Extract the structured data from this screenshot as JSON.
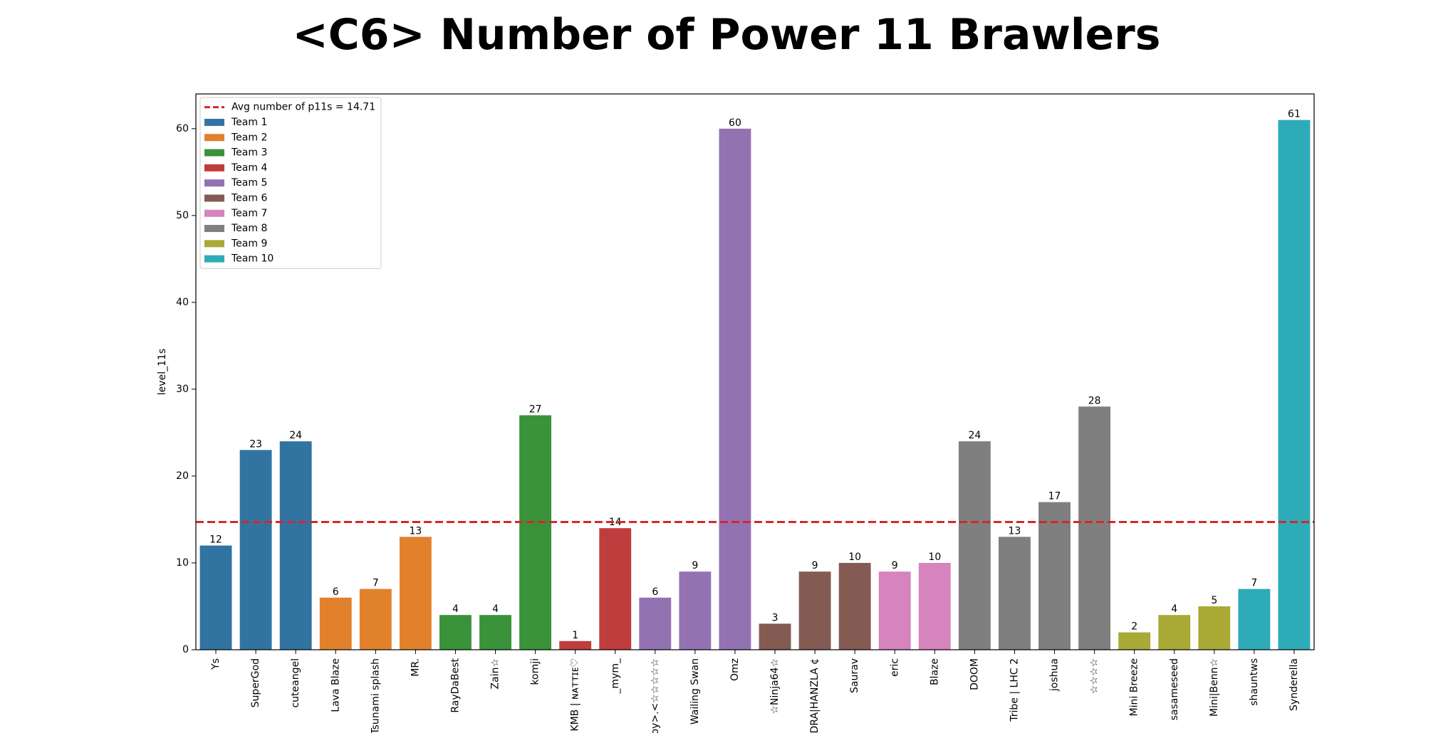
{
  "chart_data": {
    "type": "bar",
    "title": "<C6> Number of Power 11 Brawlers",
    "xlabel": "",
    "ylabel": "level_11s",
    "ylim": [
      0,
      64
    ],
    "yticks": [
      0,
      10,
      20,
      30,
      40,
      50,
      60
    ],
    "grid": false,
    "legend_position": "top-left",
    "categories": [
      "Ys",
      "SuperGod",
      "cuteangel",
      "Lava Blaze",
      "Tsunami splash",
      "MR.",
      "RayDaBest",
      "Zain☆",
      "komji",
      "KMB | ɴᴀᴛᴛɪᴇ♡",
      "_mym_",
      "Floppy>.<☆☆☆☆☆",
      "Wailing Swan",
      "Omz",
      "☆Ninja64☆",
      "DRA|HANZLA ¢",
      "Saurav",
      "eric",
      "Blaze",
      "DOOM",
      "Tribe | LHC 2",
      "joshua",
      "☆☆☆☆",
      "Mini Breeze",
      "sasameseed",
      "Mini|Benn☆",
      "shauntws",
      "Synderella"
    ],
    "values": [
      12,
      23,
      24,
      6,
      7,
      13,
      4,
      4,
      27,
      1,
      14,
      6,
      9,
      60,
      3,
      9,
      10,
      9,
      10,
      24,
      13,
      17,
      28,
      2,
      4,
      5,
      7,
      61
    ],
    "teams": [
      1,
      1,
      1,
      2,
      2,
      2,
      3,
      3,
      3,
      4,
      4,
      5,
      5,
      5,
      6,
      6,
      6,
      7,
      7,
      8,
      8,
      8,
      8,
      9,
      9,
      9,
      10,
      10
    ],
    "series": [
      {
        "name": "Team 1",
        "color": "#3274a1"
      },
      {
        "name": "Team 2",
        "color": "#e1812c"
      },
      {
        "name": "Team 3",
        "color": "#3a923a"
      },
      {
        "name": "Team 4",
        "color": "#c03d3e"
      },
      {
        "name": "Team 5",
        "color": "#9372b2"
      },
      {
        "name": "Team 6",
        "color": "#845b53"
      },
      {
        "name": "Team 7",
        "color": "#d684bd"
      },
      {
        "name": "Team 8",
        "color": "#7f7f7f"
      },
      {
        "name": "Team 9",
        "color": "#a9aa35"
      },
      {
        "name": "Team 10",
        "color": "#2eabb8"
      }
    ],
    "average_line": {
      "label": "Avg number of p11s = 14.71",
      "value": 14.71,
      "color": "#d62728",
      "style": "dashed"
    }
  }
}
